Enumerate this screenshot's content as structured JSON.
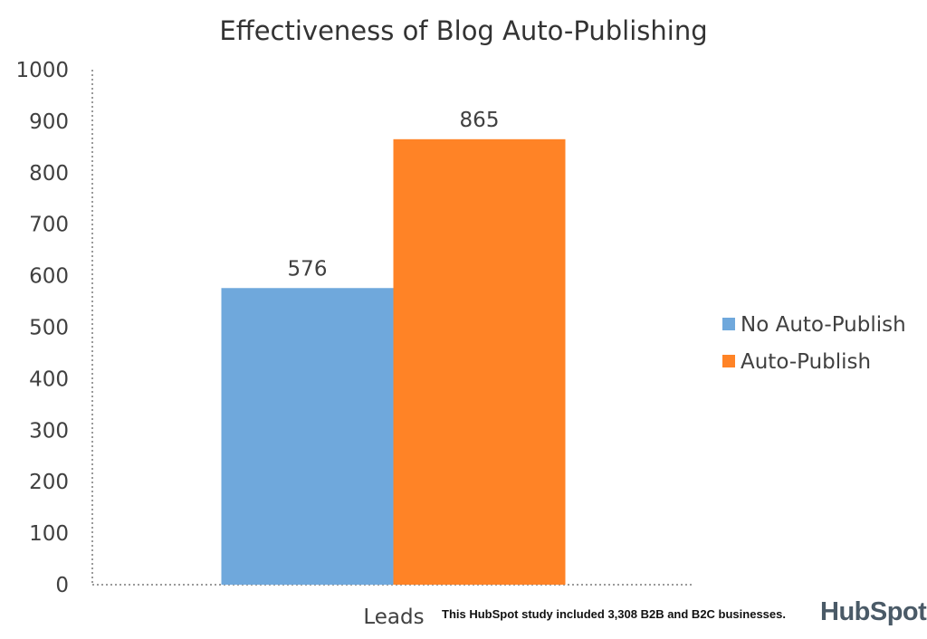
{
  "chart_data": {
    "type": "bar",
    "title": "Effectiveness of Blog Auto-Publishing",
    "categories": [
      "Leads"
    ],
    "series": [
      {
        "name": "No Auto-Publish",
        "values": [
          576
        ],
        "color": "#6fa8dc"
      },
      {
        "name": "Auto-Publish",
        "values": [
          865
        ],
        "color": "#ff8326"
      }
    ],
    "xlabel": "",
    "ylabel": "",
    "ylim": [
      0,
      1000
    ],
    "yticks": [
      "0",
      "100",
      "200",
      "300",
      "400",
      "500",
      "600",
      "700",
      "800",
      "900",
      "1000"
    ],
    "data_labels": [
      "576",
      "865"
    ],
    "grid": false,
    "legend_position": "right"
  },
  "footer": {
    "note": "This HubSpot study included 3,308 B2B and B2C businesses.",
    "brand": "HubSpot",
    "brand_icon": "sprocket-icon",
    "brand_color": "#f47622"
  }
}
